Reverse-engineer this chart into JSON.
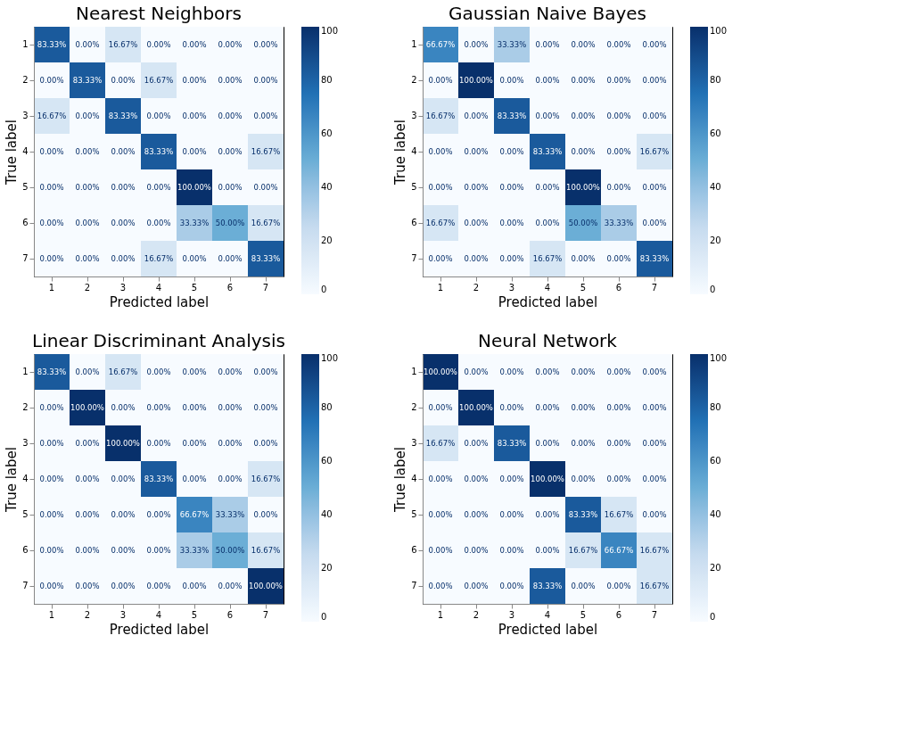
{
  "chart_data": [
    {
      "type": "heatmap",
      "title": "Nearest Neighbors",
      "xlabel": "Predicted label",
      "ylabel": "True label",
      "categories": [
        "1",
        "2",
        "3",
        "4",
        "5",
        "6",
        "7"
      ],
      "y_categories": [
        "1",
        "2",
        "3",
        "4",
        "5",
        "6",
        "7"
      ],
      "cells": [
        [
          83.33,
          0,
          16.67,
          0,
          0,
          0,
          0
        ],
        [
          0,
          83.33,
          0,
          16.67,
          0,
          0,
          0
        ],
        [
          16.67,
          0,
          83.33,
          0,
          0,
          0,
          0
        ],
        [
          0,
          0,
          0,
          83.33,
          0,
          0,
          16.67
        ],
        [
          0,
          0,
          0,
          0,
          100,
          0,
          0
        ],
        [
          0,
          0,
          0,
          0,
          33.33,
          50,
          16.67
        ],
        [
          0,
          0,
          0,
          16.67,
          0,
          0,
          83.33
        ]
      ],
      "cell_labels": [
        [
          "83.33%",
          "0.00%",
          "16.67%",
          "0.00%",
          "0.00%",
          "0.00%",
          "0.00%"
        ],
        [
          "0.00%",
          "83.33%",
          "0.00%",
          "16.67%",
          "0.00%",
          "0.00%",
          "0.00%"
        ],
        [
          "16.67%",
          "0.00%",
          "83.33%",
          "0.00%",
          "0.00%",
          "0.00%",
          "0.00%"
        ],
        [
          "0.00%",
          "0.00%",
          "0.00%",
          "83.33%",
          "0.00%",
          "0.00%",
          "16.67%"
        ],
        [
          "0.00%",
          "0.00%",
          "0.00%",
          "0.00%",
          "100.00%",
          "0.00%",
          "0.00%"
        ],
        [
          "0.00%",
          "0.00%",
          "0.00%",
          "0.00%",
          "33.33%",
          "50.00%",
          "16.67%"
        ],
        [
          "0.00%",
          "0.00%",
          "0.00%",
          "16.67%",
          "0.00%",
          "0.00%",
          "83.33%"
        ]
      ],
      "clim": [
        0,
        100
      ],
      "cticks": [
        0,
        20,
        40,
        60,
        80,
        100
      ]
    },
    {
      "type": "heatmap",
      "title": "Gaussian Naive Bayes",
      "xlabel": "Predicted label",
      "ylabel": "True label",
      "categories": [
        "1",
        "2",
        "3",
        "4",
        "5",
        "6",
        "7"
      ],
      "y_categories": [
        "1",
        "2",
        "3",
        "4",
        "5",
        "6",
        "7"
      ],
      "cells": [
        [
          66.67,
          0,
          33.33,
          0,
          0,
          0,
          0
        ],
        [
          0,
          100,
          0,
          0,
          0,
          0,
          0
        ],
        [
          16.67,
          0,
          83.33,
          0,
          0,
          0,
          0
        ],
        [
          0,
          0,
          0,
          83.33,
          0,
          0,
          16.67
        ],
        [
          0,
          0,
          0,
          0,
          100,
          0,
          0
        ],
        [
          16.67,
          0,
          0,
          0,
          50,
          33.33,
          0
        ],
        [
          0,
          0,
          0,
          16.67,
          0,
          0,
          83.33
        ]
      ],
      "cell_labels": [
        [
          "66.67%",
          "0.00%",
          "33.33%",
          "0.00%",
          "0.00%",
          "0.00%",
          "0.00%"
        ],
        [
          "0.00%",
          "100.00%",
          "0.00%",
          "0.00%",
          "0.00%",
          "0.00%",
          "0.00%"
        ],
        [
          "16.67%",
          "0.00%",
          "83.33%",
          "0.00%",
          "0.00%",
          "0.00%",
          "0.00%"
        ],
        [
          "0.00%",
          "0.00%",
          "0.00%",
          "83.33%",
          "0.00%",
          "0.00%",
          "16.67%"
        ],
        [
          "0.00%",
          "0.00%",
          "0.00%",
          "0.00%",
          "100.00%",
          "0.00%",
          "0.00%"
        ],
        [
          "16.67%",
          "0.00%",
          "0.00%",
          "0.00%",
          "50.00%",
          "33.33%",
          "0.00%"
        ],
        [
          "0.00%",
          "0.00%",
          "0.00%",
          "16.67%",
          "0.00%",
          "0.00%",
          "83.33%"
        ]
      ],
      "clim": [
        0,
        100
      ],
      "cticks": [
        0,
        20,
        40,
        60,
        80,
        100
      ]
    },
    {
      "type": "heatmap",
      "title": "Linear Discriminant Analysis",
      "xlabel": "Predicted label",
      "ylabel": "True label",
      "categories": [
        "1",
        "2",
        "3",
        "4",
        "5",
        "6",
        "7"
      ],
      "y_categories": [
        "1",
        "2",
        "3",
        "4",
        "5",
        "6",
        "7"
      ],
      "cells": [
        [
          83.33,
          0,
          16.67,
          0,
          0,
          0,
          0
        ],
        [
          0,
          100,
          0,
          0,
          0,
          0,
          0
        ],
        [
          0,
          0,
          100,
          0,
          0,
          0,
          0
        ],
        [
          0,
          0,
          0,
          83.33,
          0,
          0,
          16.67
        ],
        [
          0,
          0,
          0,
          0,
          66.67,
          33.33,
          0
        ],
        [
          0,
          0,
          0,
          0,
          33.33,
          50,
          16.67
        ],
        [
          0,
          0,
          0,
          0,
          0,
          0,
          100
        ]
      ],
      "cell_labels": [
        [
          "83.33%",
          "0.00%",
          "16.67%",
          "0.00%",
          "0.00%",
          "0.00%",
          "0.00%"
        ],
        [
          "0.00%",
          "100.00%",
          "0.00%",
          "0.00%",
          "0.00%",
          "0.00%",
          "0.00%"
        ],
        [
          "0.00%",
          "0.00%",
          "100.00%",
          "0.00%",
          "0.00%",
          "0.00%",
          "0.00%"
        ],
        [
          "0.00%",
          "0.00%",
          "0.00%",
          "83.33%",
          "0.00%",
          "0.00%",
          "16.67%"
        ],
        [
          "0.00%",
          "0.00%",
          "0.00%",
          "0.00%",
          "66.67%",
          "33.33%",
          "0.00%"
        ],
        [
          "0.00%",
          "0.00%",
          "0.00%",
          "0.00%",
          "33.33%",
          "50.00%",
          "16.67%"
        ],
        [
          "0.00%",
          "0.00%",
          "0.00%",
          "0.00%",
          "0.00%",
          "0.00%",
          "100.00%"
        ]
      ],
      "clim": [
        0,
        100
      ],
      "cticks": [
        0,
        20,
        40,
        60,
        80,
        100
      ]
    },
    {
      "type": "heatmap",
      "title": "Neural Network",
      "xlabel": "Predicted label",
      "ylabel": "True label",
      "categories": [
        "1",
        "2",
        "3",
        "4",
        "5",
        "6",
        "7"
      ],
      "y_categories": [
        "1",
        "2",
        "3",
        "4",
        "5",
        "6",
        "7"
      ],
      "cells": [
        [
          100,
          0,
          0,
          0,
          0,
          0,
          0
        ],
        [
          0,
          100,
          0,
          0,
          0,
          0,
          0
        ],
        [
          16.67,
          0,
          83.33,
          0,
          0,
          0,
          0
        ],
        [
          0,
          0,
          0,
          100,
          0,
          0,
          0
        ],
        [
          0,
          0,
          0,
          0,
          83.33,
          16.67,
          0
        ],
        [
          0,
          0,
          0,
          0,
          16.67,
          66.67,
          16.67
        ],
        [
          0,
          0,
          0,
          83.33,
          0,
          0,
          16.67
        ]
      ],
      "cell_labels": [
        [
          "100.00%",
          "0.00%",
          "0.00%",
          "0.00%",
          "0.00%",
          "0.00%",
          "0.00%"
        ],
        [
          "0.00%",
          "100.00%",
          "0.00%",
          "0.00%",
          "0.00%",
          "0.00%",
          "0.00%"
        ],
        [
          "16.67%",
          "0.00%",
          "83.33%",
          "0.00%",
          "0.00%",
          "0.00%",
          "0.00%"
        ],
        [
          "0.00%",
          "0.00%",
          "0.00%",
          "100.00%",
          "0.00%",
          "0.00%",
          "0.00%"
        ],
        [
          "0.00%",
          "0.00%",
          "0.00%",
          "0.00%",
          "83.33%",
          "16.67%",
          "0.00%"
        ],
        [
          "0.00%",
          "0.00%",
          "0.00%",
          "0.00%",
          "16.67%",
          "66.67%",
          "16.67%"
        ],
        [
          "0.00%",
          "0.00%",
          "0.00%",
          "83.33%",
          "0.00%",
          "0.00%",
          "16.67%"
        ]
      ],
      "clim": [
        0,
        100
      ],
      "cticks": [
        0,
        20,
        40,
        60,
        80,
        100
      ]
    }
  ]
}
